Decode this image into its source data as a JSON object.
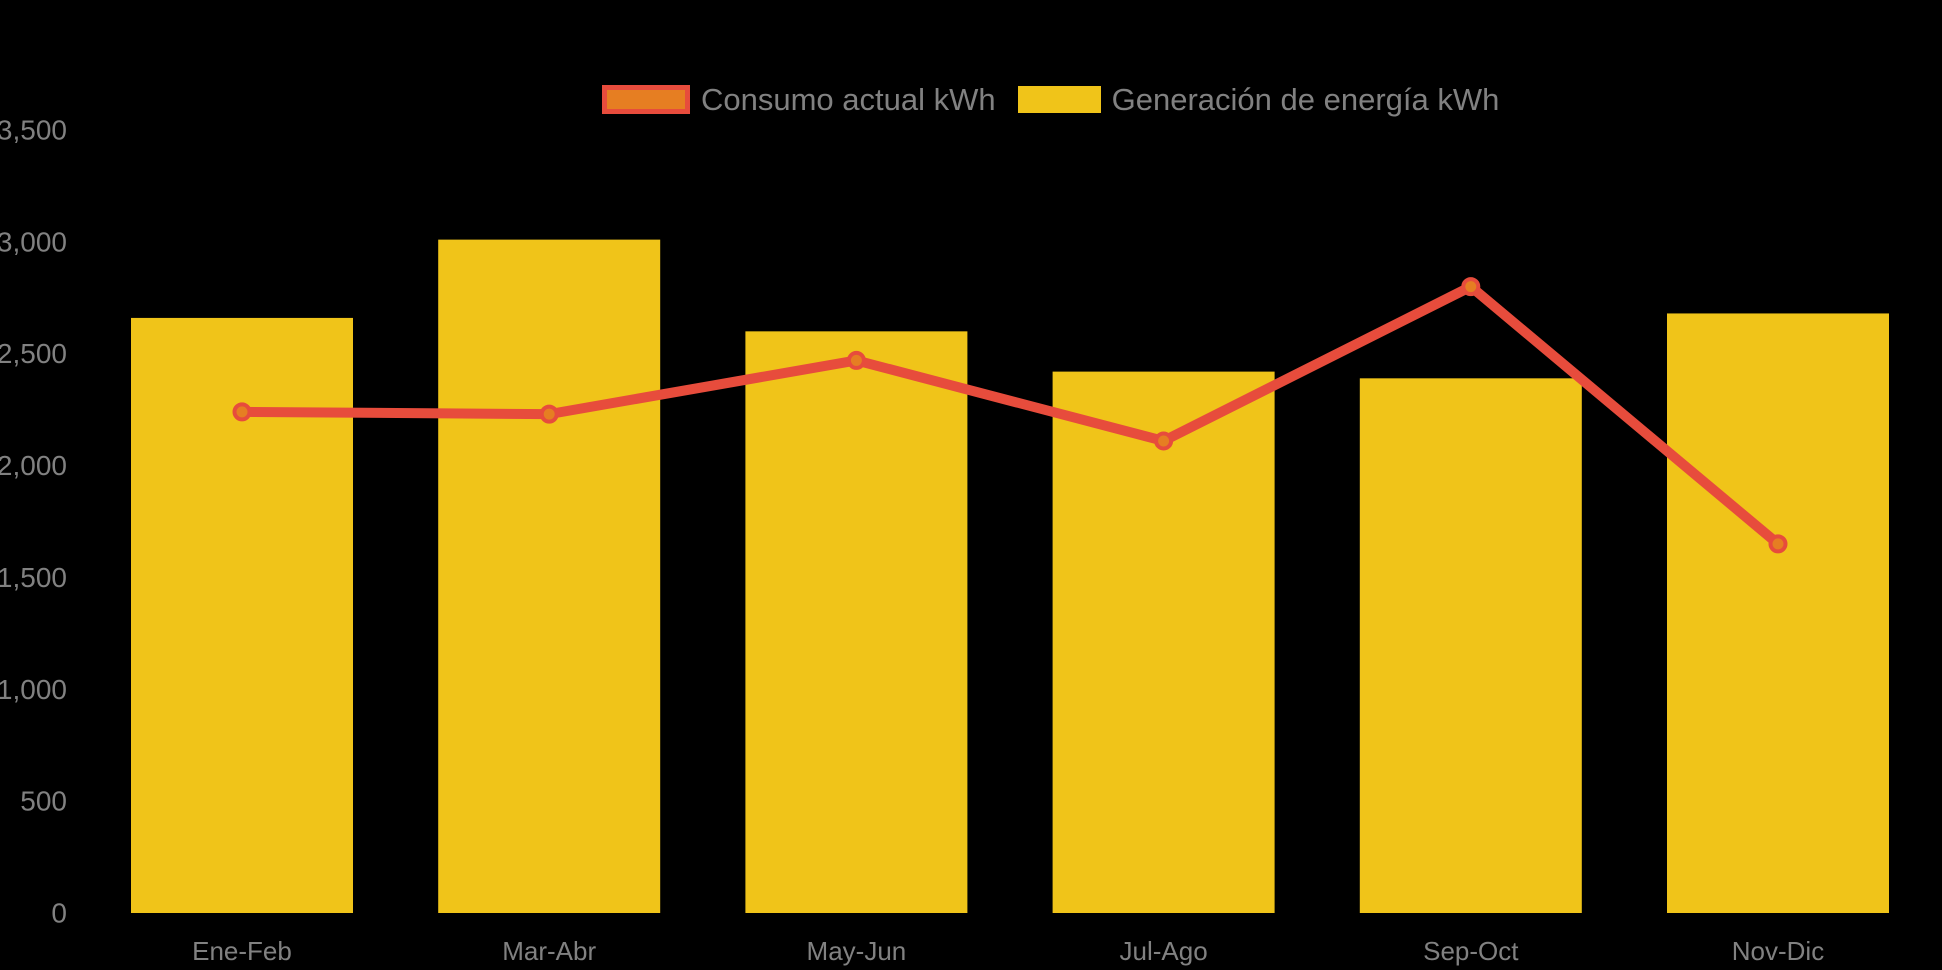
{
  "colors": {
    "background": "#000000",
    "bar_fill": "#f0c419",
    "line_stroke": "#e74c3c",
    "marker_fill": "#e67e22",
    "marker_stroke": "#e74c3c",
    "axis_text": "#818181",
    "legend_text": "#818181"
  },
  "legend": {
    "items": [
      {
        "id": "consumo",
        "label": "Consumo actual kWh",
        "swatch_fill": "#e67e22",
        "swatch_border": "#e74c3c"
      },
      {
        "id": "generacion",
        "label": "Generación de energía kWh",
        "swatch_fill": "#f0c419",
        "swatch_border": ""
      }
    ]
  },
  "chart_data": {
    "type": "bar",
    "title": "",
    "xlabel": "",
    "ylabel": "",
    "categories": [
      "Ene-Feb",
      "Mar-Abr",
      "May-Jun",
      "Jul-Ago",
      "Sep-Oct",
      "Nov-Dic"
    ],
    "series": [
      {
        "name": "Consumo actual kWh",
        "type": "line",
        "color": "#e74c3c",
        "marker_color": "#e67e22",
        "values": [
          2240,
          2230,
          2470,
          2110,
          2800,
          1650
        ]
      },
      {
        "name": "Generación de energía kWh",
        "type": "bar",
        "color": "#f0c419",
        "values": [
          2660,
          3010,
          2600,
          2420,
          2390,
          2680
        ]
      }
    ],
    "ylim": [
      0,
      3500
    ],
    "ytick_step": 500,
    "ytick_labels": [
      "0",
      "500",
      "1,000",
      "1,500",
      "2,000",
      "2,500",
      "3,000",
      "3,500"
    ],
    "grid": false,
    "legend_position": "top-center",
    "background": "#000000"
  }
}
